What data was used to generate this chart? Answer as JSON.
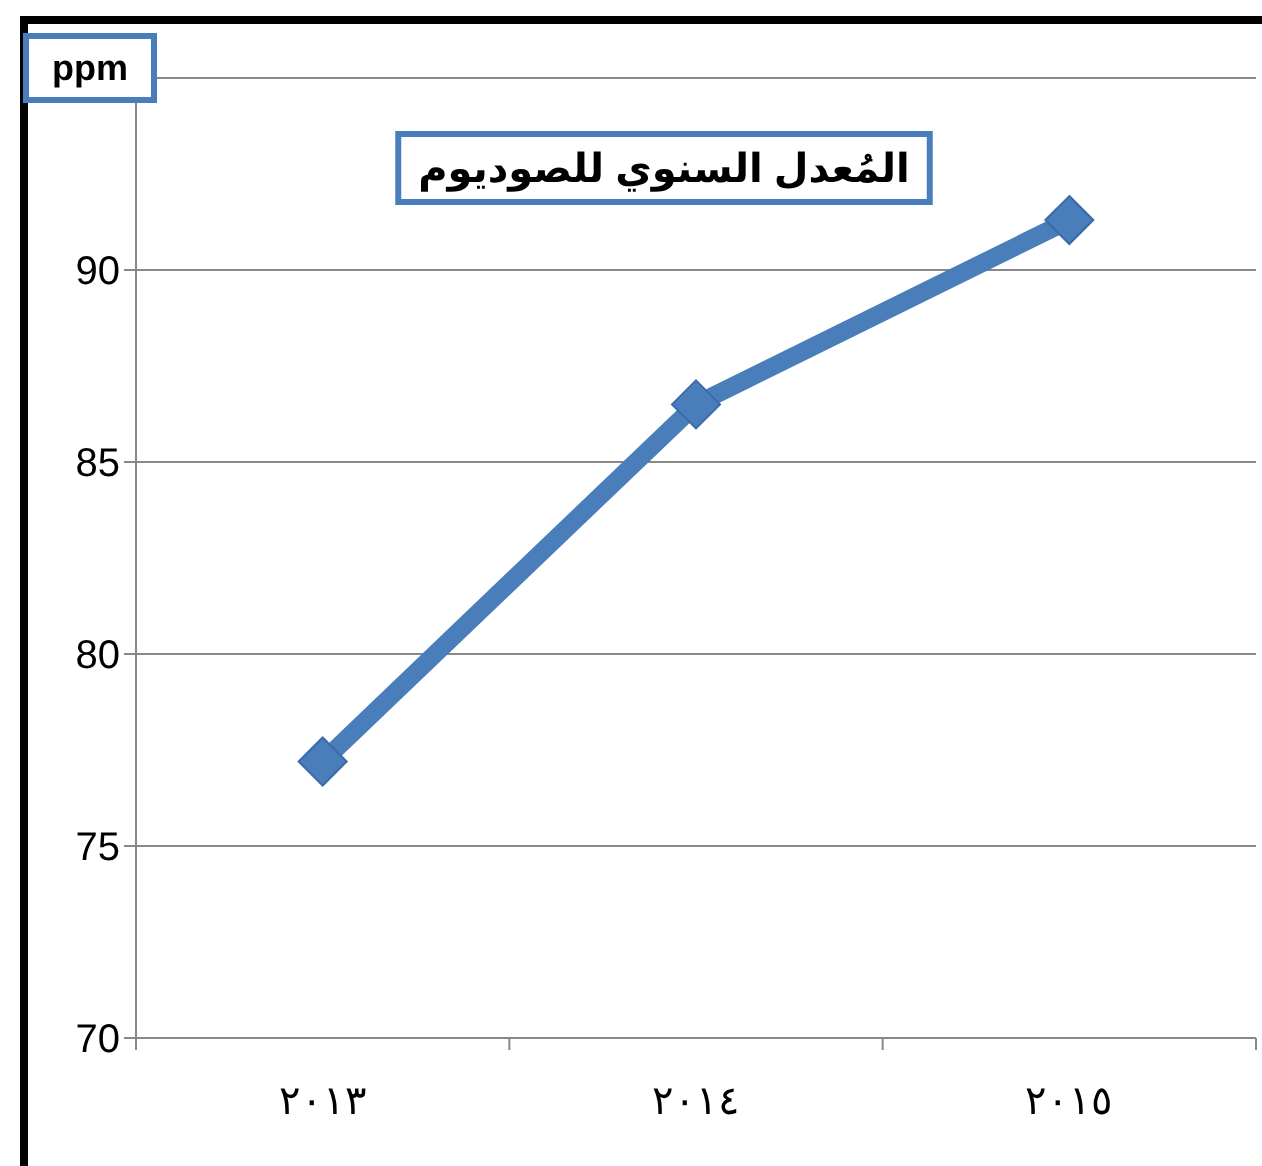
{
  "chart_data": {
    "type": "line",
    "title": "المُعدل السنوي للصوديوم",
    "ylabel": "ppm",
    "categories": [
      "٢٠١٣",
      "٢٠١٤",
      "٢٠١٥"
    ],
    "values": [
      77.2,
      86.5,
      91.3
    ],
    "color": "#4a7ebb",
    "ylim": [
      70,
      95
    ],
    "yticks": [
      70,
      75,
      80,
      85,
      90
    ],
    "grid": "y",
    "marker": "diamond",
    "line_style": "solid"
  }
}
